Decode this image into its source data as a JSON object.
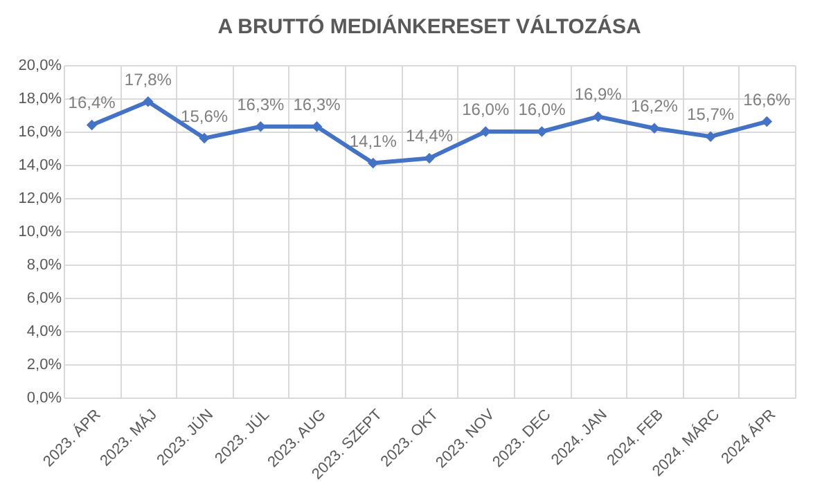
{
  "chart_data": {
    "type": "line",
    "title": "A BRUTTÓ MEDIÁNKERESET VÁLTOZÁSA",
    "categories": [
      "2023. ÁPR",
      "2023. MÁJ",
      "2023. JÚN",
      "2023. JÚL",
      "2023. AUG",
      "2023. SZEPT",
      "2023. OKT",
      "2023. NOV",
      "2023. DEC",
      "2024. JAN",
      "2024. FEB",
      "2024. MÁRC",
      "2024 ÁPR"
    ],
    "series": [
      {
        "color": "#4472c4",
        "values": [
          16.4,
          17.8,
          15.6,
          16.3,
          16.3,
          14.1,
          14.4,
          16.0,
          16.0,
          16.9,
          16.2,
          15.7,
          16.6
        ],
        "value_labels": [
          "16,4%",
          "17,8%",
          "15,6%",
          "16,3%",
          "16,3%",
          "14,1%",
          "14,4%",
          "16,0%",
          "16,0%",
          "16,9%",
          "16,2%",
          "15,7%",
          "16,6%"
        ]
      }
    ],
    "ylim": [
      0,
      20
    ],
    "yticks": [
      {
        "value": 0,
        "label": "0,0%"
      },
      {
        "value": 2,
        "label": "2,0%"
      },
      {
        "value": 4,
        "label": "4,0%"
      },
      {
        "value": 6,
        "label": "6,0%"
      },
      {
        "value": 8,
        "label": "8,0%"
      },
      {
        "value": 10,
        "label": "10,0%"
      },
      {
        "value": 12,
        "label": "12,0%"
      },
      {
        "value": 14,
        "label": "14,0%"
      },
      {
        "value": 16,
        "label": "16,0%"
      },
      {
        "value": 18,
        "label": "18,0%"
      },
      {
        "value": 20,
        "label": "20,0%"
      }
    ],
    "grid": true,
    "marker": "diamond",
    "line_style": "solid"
  }
}
